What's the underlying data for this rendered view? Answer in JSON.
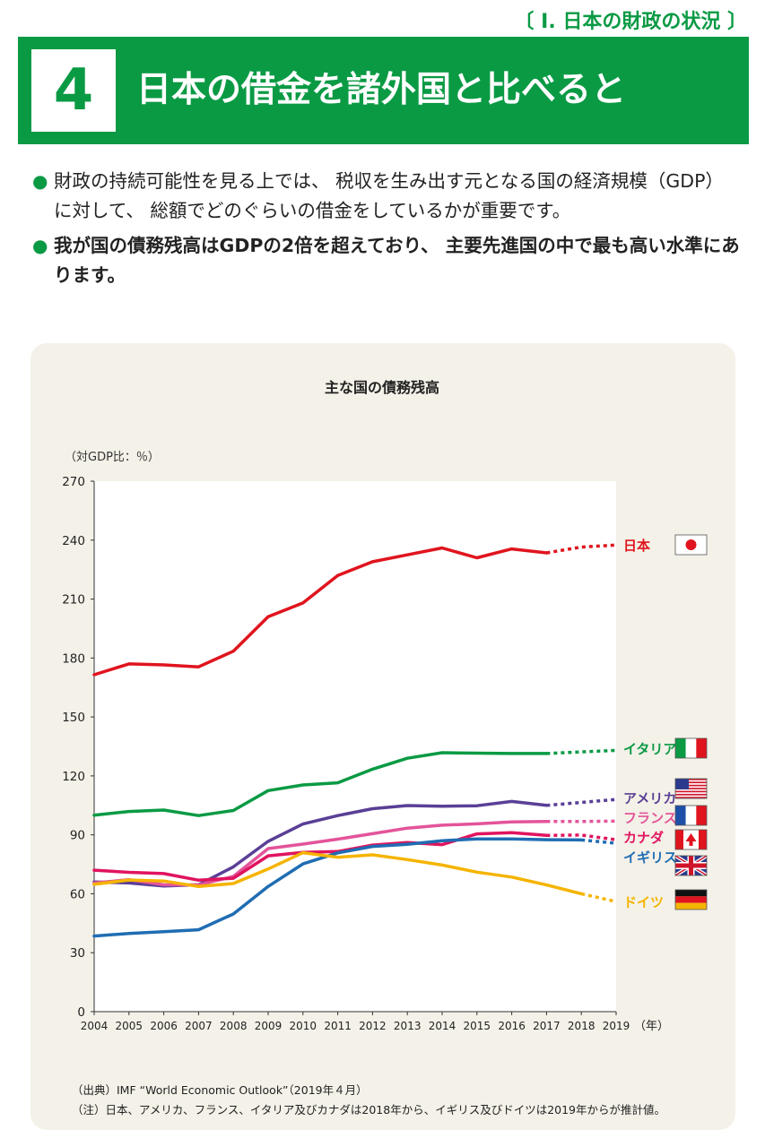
{
  "header": {
    "section": "〔 I.  日本の財政の状況 〕",
    "number": "4",
    "title": "日本の借金を諸外国と比べると"
  },
  "bullets": [
    {
      "text": "財政の持続可能性を見る上では、 税収を生み出す元となる国の経済規模（GDP）に対して、 総額でどのぐらいの借金をしているかが重要です。",
      "bold": false
    },
    {
      "text": "我が国の債務残高はGDPの2倍を超えており、 主要先進国の中で最も高い水準にあります。",
      "bold": true
    }
  ],
  "chart_data": {
    "type": "line",
    "title": "主な国の債務残高",
    "ylabel": "（対GDP比：％）",
    "xlabel": "（年）",
    "ylim": [
      0,
      270
    ],
    "yticks": [
      0,
      30,
      60,
      90,
      120,
      150,
      180,
      210,
      240,
      270
    ],
    "x": [
      2004,
      2005,
      2006,
      2007,
      2008,
      2009,
      2010,
      2011,
      2012,
      2013,
      2014,
      2015,
      2016,
      2017,
      2018,
      2019
    ],
    "series": [
      {
        "name": "日本",
        "color": "#e0141e",
        "flag": "japan-flag-icon",
        "estimate_from": 2018,
        "values": [
          171.5,
          177.0,
          176.5,
          175.5,
          183.5,
          201.0,
          208.0,
          222.0,
          229.0,
          232.5,
          236.0,
          231.0,
          235.5,
          233.5,
          236.5,
          237.5
        ]
      },
      {
        "name": "イタリア",
        "color": "#0a9a44",
        "flag": "italy-flag-icon",
        "estimate_from": 2018,
        "values": [
          100.0,
          101.9,
          102.6,
          99.8,
          102.4,
          112.5,
          115.4,
          116.5,
          123.4,
          129.0,
          131.8,
          131.6,
          131.4,
          131.4,
          132.2,
          133.0
        ]
      },
      {
        "name": "アメリカ",
        "color": "#5a3f96",
        "flag": "usa-flag-icon",
        "estimate_from": 2018,
        "values": [
          66.0,
          65.5,
          64.0,
          64.6,
          73.7,
          86.7,
          95.5,
          99.8,
          103.3,
          104.9,
          104.6,
          104.8,
          107.0,
          105.0,
          106.5,
          108.0
        ]
      },
      {
        "name": "フランス",
        "color": "#e3549a",
        "flag": "france-flag-icon",
        "estimate_from": 2018,
        "values": [
          65.5,
          67.2,
          64.6,
          64.5,
          68.8,
          83.0,
          85.3,
          87.8,
          90.6,
          93.4,
          94.9,
          95.6,
          96.6,
          96.8,
          96.8,
          97.0
        ]
      },
      {
        "name": "カナダ",
        "color": "#e0145f",
        "flag": "canada-flag-icon",
        "estimate_from": 2018,
        "values": [
          72.0,
          70.9,
          70.3,
          66.9,
          67.9,
          79.3,
          81.1,
          81.5,
          84.8,
          86.1,
          85.0,
          90.5,
          91.1,
          89.7,
          89.9,
          87.5
        ]
      },
      {
        "name": "イギリス",
        "color": "#1f6db3",
        "flag": "uk-flag-icon",
        "estimate_from": 2019,
        "values": [
          38.5,
          39.8,
          40.7,
          41.7,
          49.7,
          63.7,
          75.2,
          80.8,
          84.1,
          85.2,
          87.0,
          87.9,
          87.9,
          87.5,
          87.4,
          85.7
        ]
      },
      {
        "name": "ドイツ",
        "color": "#f5b400",
        "flag": "germany-flag-icon",
        "estimate_from": 2019,
        "values": [
          64.8,
          67.0,
          66.5,
          63.7,
          65.2,
          72.6,
          80.9,
          78.6,
          79.8,
          77.4,
          74.6,
          71.0,
          68.5,
          64.5,
          60.0,
          56.0
        ]
      }
    ]
  },
  "notes": {
    "source": "（出典）IMF “World Economic Outlook”（2019年４月）",
    "note": "（注）日本、アメリカ、フランス、イタリア及びカナダは2018年から、イギリス及びドイツは2019年からが推計値。"
  }
}
